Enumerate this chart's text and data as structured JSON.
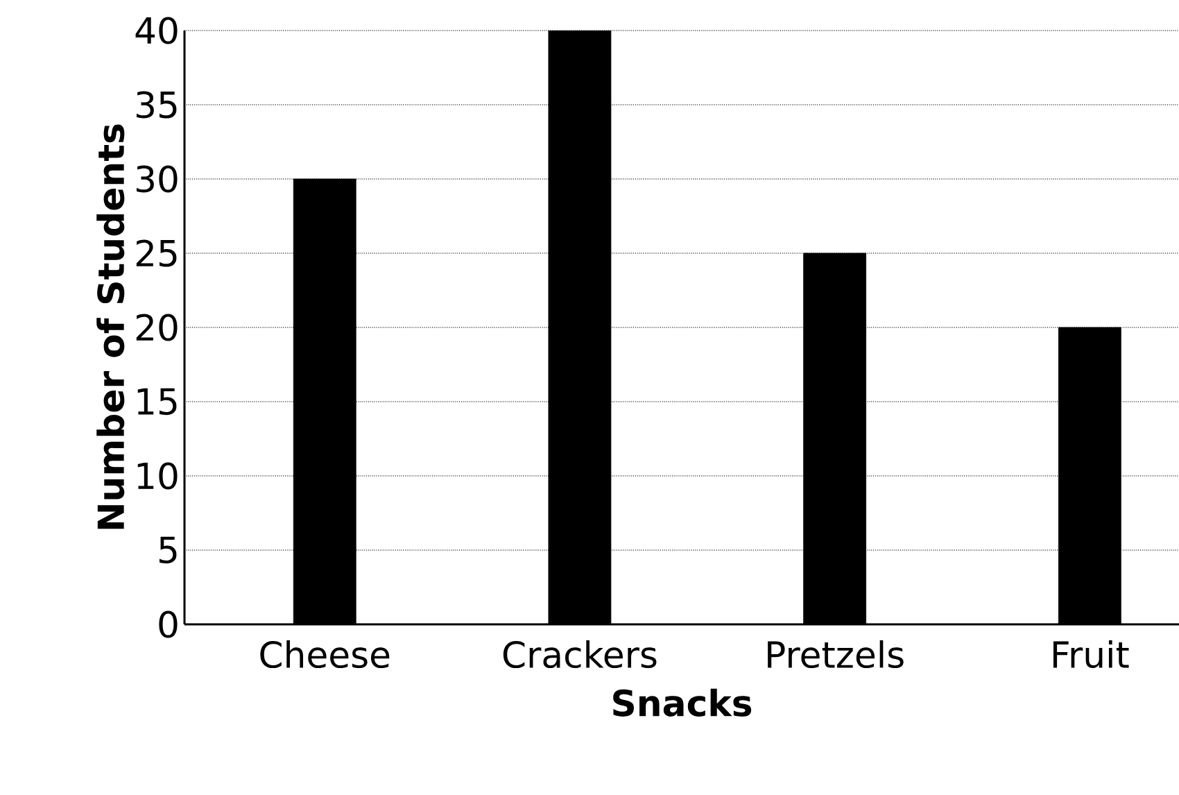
{
  "chart_data": {
    "type": "bar",
    "xlabel": "Snacks",
    "ylabel": "Number of Students",
    "categories": [
      "Cheese",
      "Crackers",
      "Pretzels",
      "Fruit"
    ],
    "values": [
      30,
      40,
      25,
      20
    ],
    "color": "#000000",
    "ylim": [
      0,
      40
    ],
    "yticks": [
      0,
      5,
      10,
      15,
      20,
      25,
      30,
      35,
      40
    ],
    "grid": "y"
  }
}
